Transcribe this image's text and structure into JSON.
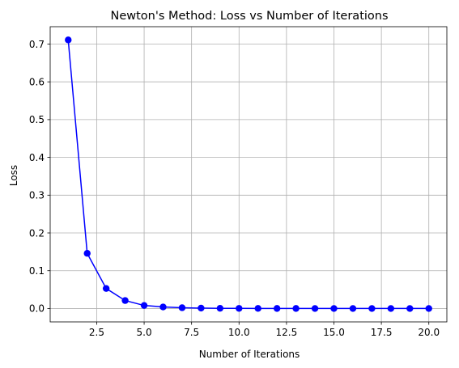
{
  "chart_data": {
    "type": "line",
    "title": "Newton's Method: Loss vs Number of Iterations",
    "xlabel": "Number of Iterations",
    "ylabel": "Loss",
    "xlim": [
      0.05,
      20.95
    ],
    "ylim": [
      -0.0355,
      0.746
    ],
    "xticks": [
      2.5,
      5.0,
      7.5,
      10.0,
      12.5,
      15.0,
      17.5,
      20.0
    ],
    "xtick_labels": [
      "2.5",
      "5.0",
      "7.5",
      "10.0",
      "12.5",
      "15.0",
      "17.5",
      "20.0"
    ],
    "yticks": [
      0.0,
      0.1,
      0.2,
      0.3,
      0.4,
      0.5,
      0.6,
      0.7
    ],
    "ytick_labels": [
      "0.0",
      "0.1",
      "0.2",
      "0.3",
      "0.4",
      "0.5",
      "0.6",
      "0.7"
    ],
    "grid": true,
    "series": [
      {
        "color": "#0000ff",
        "marker": "circle",
        "x": [
          1,
          2,
          3,
          4,
          5,
          6,
          7,
          8,
          9,
          10,
          11,
          12,
          13,
          14,
          15,
          16,
          17,
          18,
          19,
          20
        ],
        "y": [
          0.711,
          0.146,
          0.053,
          0.021,
          0.008,
          0.004,
          0.002,
          0.001,
          0.0005,
          0.0003,
          0.0002,
          0.0001,
          0.0001,
          0.0,
          0.0,
          0.0,
          0.0,
          0.0,
          0.0,
          0.0
        ]
      }
    ]
  }
}
